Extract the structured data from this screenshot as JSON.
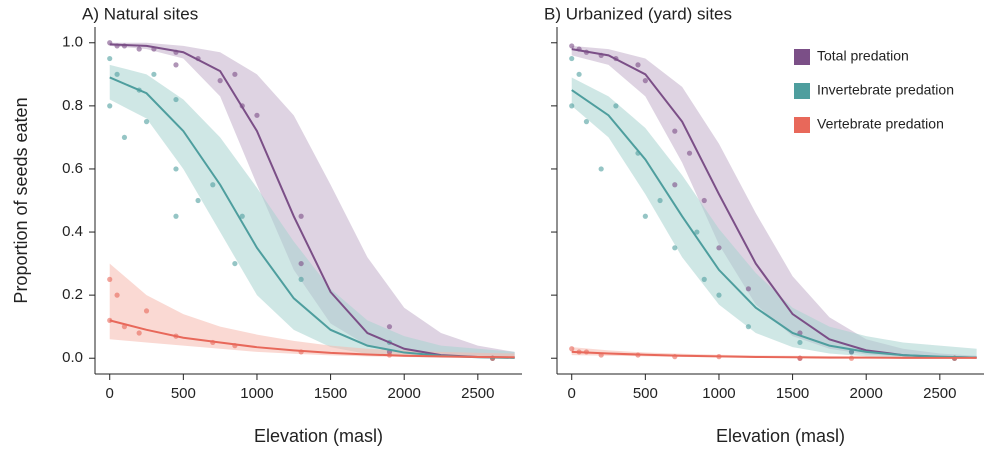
{
  "chart_data": [
    {
      "type": "scatter",
      "title": "A) Natural sites",
      "xlabel": "Elevation (masl)",
      "ylabel": "Proportion of seeds eaten",
      "xlim": [
        -100,
        2800
      ],
      "ylim": [
        -0.05,
        1.05
      ],
      "xticks": [
        0,
        500,
        1000,
        1500,
        2000,
        2500
      ],
      "yticks": [
        {
          "value": 0,
          "label": "0.0"
        },
        {
          "value": 0.2,
          "label": "0.2"
        },
        {
          "value": 0.4,
          "label": "0.4"
        },
        {
          "value": 0.6,
          "label": "0.6"
        },
        {
          "value": 0.8,
          "label": "0.8"
        },
        {
          "value": 1,
          "label": "1.0"
        }
      ],
      "series": [
        {
          "color": "#7b4f87",
          "band_color": "#c3aecb",
          "x": [
            0,
            250,
            500,
            750,
            1000,
            1250,
            1500,
            1750,
            2000,
            2250,
            2500,
            2750
          ],
          "values": [
            0.995,
            0.99,
            0.97,
            0.91,
            0.72,
            0.45,
            0.21,
            0.08,
            0.03,
            0.01,
            0.004,
            0.002
          ],
          "lower": [
            0.99,
            0.98,
            0.95,
            0.83,
            0.55,
            0.28,
            0.11,
            0.04,
            0.015,
            0.006,
            0.003,
            0.001
          ],
          "upper": [
            1,
            1,
            0.99,
            0.97,
            0.9,
            0.77,
            0.55,
            0.32,
            0.16,
            0.08,
            0.04,
            0.02
          ],
          "points": {
            "x": [
              0,
              50,
              100,
              200,
              300,
              450,
              450,
              600,
              750,
              850,
              900,
              1000,
              1300,
              1300,
              1900,
              1900,
              2600
            ],
            "y": [
              1.0,
              0.99,
              0.99,
              0.98,
              0.98,
              0.97,
              0.93,
              0.95,
              0.88,
              0.9,
              0.8,
              0.77,
              0.45,
              0.3,
              0.1,
              0.02,
              0.0
            ]
          }
        },
        {
          "color": "#4e9e9e",
          "band_color": "#a8d4cf",
          "x": [
            0,
            250,
            500,
            750,
            1000,
            1250,
            1500,
            1750,
            2000,
            2250,
            2500,
            2750
          ],
          "values": [
            0.89,
            0.84,
            0.72,
            0.55,
            0.35,
            0.19,
            0.09,
            0.04,
            0.018,
            0.008,
            0.003,
            0.001
          ],
          "lower": [
            0.82,
            0.76,
            0.6,
            0.4,
            0.2,
            0.09,
            0.035,
            0.013,
            0.005,
            0.002,
            0.001,
            0
          ],
          "upper": [
            0.93,
            0.9,
            0.82,
            0.7,
            0.54,
            0.37,
            0.22,
            0.12,
            0.07,
            0.04,
            0.03,
            0.02
          ],
          "points": {
            "x": [
              0,
              0,
              50,
              100,
              200,
              250,
              300,
              450,
              450,
              450,
              600,
              700,
              850,
              900,
              1300,
              1900,
              2600
            ],
            "y": [
              0.95,
              0.8,
              0.9,
              0.7,
              0.85,
              0.75,
              0.9,
              0.6,
              0.45,
              0.82,
              0.5,
              0.55,
              0.3,
              0.45,
              0.25,
              0.05,
              0.0
            ]
          }
        },
        {
          "color": "#e8685a",
          "band_color": "#f5b9ae",
          "x": [
            0,
            250,
            500,
            750,
            1000,
            1250,
            1500,
            1750,
            2000,
            2250,
            2500,
            2750
          ],
          "values": [
            0.12,
            0.09,
            0.065,
            0.05,
            0.035,
            0.025,
            0.017,
            0.012,
            0.008,
            0.006,
            0.004,
            0.003
          ],
          "lower": [
            0.06,
            0.05,
            0.04,
            0.03,
            0.02,
            0.014,
            0.009,
            0.006,
            0.004,
            0.002,
            0.001,
            0.001
          ],
          "upper": [
            0.3,
            0.2,
            0.14,
            0.1,
            0.075,
            0.055,
            0.04,
            0.03,
            0.025,
            0.02,
            0.017,
            0.015
          ],
          "points": {
            "x": [
              0,
              0,
              50,
              100,
              200,
              250,
              450,
              700,
              850,
              1300,
              1900,
              2600
            ],
            "y": [
              0.25,
              0.12,
              0.2,
              0.1,
              0.08,
              0.15,
              0.07,
              0.05,
              0.04,
              0.02,
              0.01,
              0.0
            ]
          }
        }
      ]
    },
    {
      "type": "scatter",
      "title": "B) Urbanized (yard) sites",
      "xlabel": "Elevation (masl)",
      "xlim": [
        -100,
        2800
      ],
      "ylim": [
        -0.05,
        1.05
      ],
      "xticks": [
        0,
        500,
        1000,
        1500,
        2000,
        2500
      ],
      "yticks": [
        0,
        0.2,
        0.4,
        0.6,
        0.8,
        1
      ],
      "legend": "upper right",
      "series": [
        {
          "name": "Total predation",
          "color": "#7b4f87",
          "band_color": "#c3aecb",
          "x": [
            0,
            250,
            500,
            750,
            1000,
            1250,
            1500,
            1750,
            2000,
            2250,
            2500,
            2750
          ],
          "values": [
            0.98,
            0.96,
            0.9,
            0.75,
            0.52,
            0.3,
            0.14,
            0.06,
            0.025,
            0.01,
            0.004,
            0.002
          ],
          "lower": [
            0.96,
            0.93,
            0.83,
            0.62,
            0.36,
            0.17,
            0.07,
            0.03,
            0.012,
            0.005,
            0.002,
            0.001
          ],
          "upper": [
            0.99,
            0.98,
            0.95,
            0.86,
            0.68,
            0.46,
            0.26,
            0.13,
            0.06,
            0.03,
            0.015,
            0.008
          ],
          "points": {
            "x": [
              0,
              50,
              100,
              200,
              300,
              450,
              500,
              700,
              700,
              800,
              900,
              1000,
              1200,
              1550,
              1550,
              1900,
              2600
            ],
            "y": [
              0.99,
              0.98,
              0.97,
              0.96,
              0.95,
              0.93,
              0.88,
              0.72,
              0.55,
              0.65,
              0.5,
              0.35,
              0.22,
              0.08,
              0.0,
              0.02,
              0.0
            ]
          }
        },
        {
          "name": "Invertebrate predation",
          "color": "#4e9e9e",
          "band_color": "#a8d4cf",
          "x": [
            0,
            250,
            500,
            750,
            1000,
            1250,
            1500,
            1750,
            2000,
            2250,
            2500,
            2750
          ],
          "values": [
            0.85,
            0.77,
            0.63,
            0.45,
            0.28,
            0.16,
            0.08,
            0.04,
            0.02,
            0.01,
            0.005,
            0.002
          ],
          "lower": [
            0.8,
            0.7,
            0.52,
            0.32,
            0.17,
            0.08,
            0.035,
            0.015,
            0.006,
            0.002,
            0.001,
            0
          ],
          "upper": [
            0.89,
            0.83,
            0.73,
            0.58,
            0.41,
            0.27,
            0.16,
            0.1,
            0.07,
            0.05,
            0.04,
            0.03
          ],
          "points": {
            "x": [
              0,
              0,
              50,
              100,
              200,
              300,
              450,
              500,
              600,
              700,
              850,
              900,
              1000,
              1200,
              1550,
              1900,
              2600
            ],
            "y": [
              0.95,
              0.8,
              0.9,
              0.75,
              0.6,
              0.8,
              0.65,
              0.45,
              0.5,
              0.35,
              0.4,
              0.25,
              0.2,
              0.1,
              0.05,
              0.02,
              0.0
            ]
          }
        },
        {
          "name": "Vertebrate predation",
          "color": "#e8685a",
          "band_color": "#f5b9ae",
          "x": [
            0,
            250,
            500,
            750,
            1000,
            1250,
            1500,
            1750,
            2000,
            2250,
            2500,
            2750
          ],
          "values": [
            0.02,
            0.015,
            0.011,
            0.008,
            0.006,
            0.004,
            0.003,
            0.002,
            0.002,
            0.001,
            0.001,
            0.001
          ],
          "lower": [
            0.01,
            0.008,
            0.006,
            0.004,
            0.003,
            0.002,
            0.001,
            0.001,
            0.001,
            0,
            0,
            0
          ],
          "upper": [
            0.035,
            0.025,
            0.018,
            0.014,
            0.011,
            0.009,
            0.008,
            0.007,
            0.006,
            0.006,
            0.005,
            0.005
          ],
          "points": {
            "x": [
              0,
              50,
              100,
              200,
              450,
              700,
              1000,
              1550,
              1900,
              2600
            ],
            "y": [
              0.03,
              0.02,
              0.02,
              0.01,
              0.01,
              0.005,
              0.005,
              0.0,
              0.0,
              0.0
            ]
          }
        }
      ]
    }
  ]
}
